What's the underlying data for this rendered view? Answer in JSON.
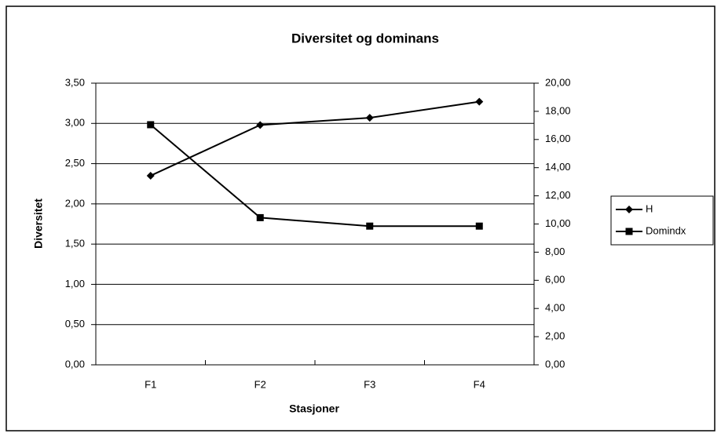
{
  "chart_data": {
    "type": "line",
    "title": "Diversitet og dominans",
    "xlabel": "Stasjoner",
    "ylabel": "Diversitet",
    "categories": [
      "F1",
      "F2",
      "F3",
      "F4"
    ],
    "series": [
      {
        "name": "H",
        "color": "#000000",
        "marker": "diamond",
        "values": [
          2.35,
          2.98,
          3.07,
          3.27
        ]
      },
      {
        "name": "Domindx",
        "color": "#000000",
        "marker": "square",
        "axis": "y2",
        "values": [
          17.05,
          10.45,
          9.85,
          9.85
        ]
      }
    ],
    "ylim": [
      0,
      3.5
    ],
    "yticks": [
      {
        "value": 0,
        "label": "0,00"
      },
      {
        "value": 0.5,
        "label": "0,50"
      },
      {
        "value": 1,
        "label": "1,00"
      },
      {
        "value": 1.5,
        "label": "1,50"
      },
      {
        "value": 2,
        "label": "2,00"
      },
      {
        "value": 2.5,
        "label": "2,50"
      },
      {
        "value": 3,
        "label": "3,00"
      },
      {
        "value": 3.5,
        "label": "3,50"
      }
    ],
    "y2lim": [
      0,
      20
    ],
    "y2ticks": [
      {
        "value": 0,
        "label": "0,00"
      },
      {
        "value": 2,
        "label": "2,00"
      },
      {
        "value": 4,
        "label": "4,00"
      },
      {
        "value": 6,
        "label": "6,00"
      },
      {
        "value": 8,
        "label": "8,00"
      },
      {
        "value": 10,
        "label": "10,00"
      },
      {
        "value": 12,
        "label": "12,00"
      },
      {
        "value": 14,
        "label": "14,00"
      },
      {
        "value": 16,
        "label": "16,00"
      },
      {
        "value": 18,
        "label": "18,00"
      },
      {
        "value": 20,
        "label": "20,00"
      }
    ],
    "grid": true,
    "legend": "right"
  }
}
